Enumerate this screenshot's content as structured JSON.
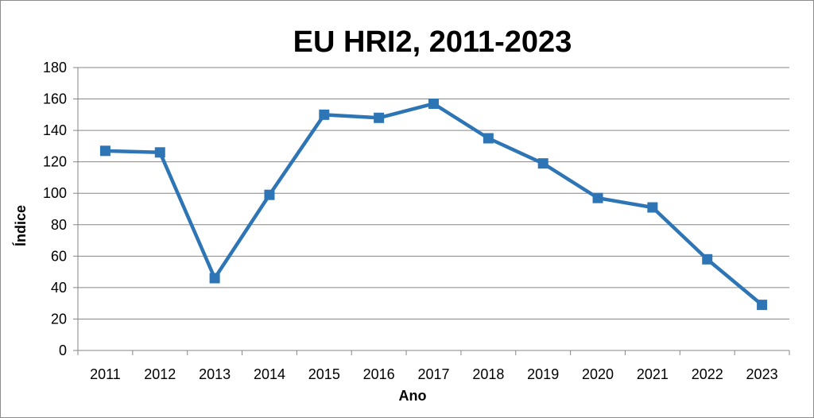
{
  "chart_data": {
    "type": "line",
    "title": "EU HRI2, 2011-2023",
    "xlabel": "Ano",
    "ylabel": "Índice",
    "categories": [
      "2011",
      "2012",
      "2013",
      "2014",
      "2015",
      "2016",
      "2017",
      "2018",
      "2019",
      "2020",
      "2021",
      "2022",
      "2023"
    ],
    "series": [
      {
        "values": [
          127,
          126,
          46,
          99,
          150,
          148,
          157,
          135,
          119,
          97,
          91,
          58,
          29
        ]
      }
    ],
    "ylim": [
      0,
      180
    ],
    "yticks": [
      "0",
      "20",
      "40",
      "60",
      "80",
      "100",
      "120",
      "140",
      "160",
      "180"
    ],
    "grid": true,
    "legend": "none",
    "line_color": "#2E75B6"
  }
}
